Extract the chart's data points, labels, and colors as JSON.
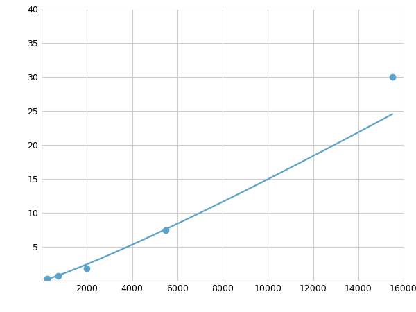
{
  "x": [
    250,
    750,
    2000,
    5500,
    15500
  ],
  "y": [
    0.3,
    0.7,
    1.8,
    7.5,
    30.0
  ],
  "line_color": "#5ba3c9",
  "marker_color": "#5ba3c9",
  "marker_size": 6,
  "marker_style": "o",
  "line_width": 1.6,
  "xlim": [
    0,
    16000
  ],
  "ylim": [
    0,
    40
  ],
  "xticks": [
    0,
    2000,
    4000,
    6000,
    8000,
    10000,
    12000,
    14000,
    16000
  ],
  "yticks": [
    0,
    5,
    10,
    15,
    20,
    25,
    30,
    35,
    40
  ],
  "grid_color": "#cccccc",
  "grid_linewidth": 0.8,
  "background_color": "#ffffff",
  "fig_background_color": "#ffffff"
}
